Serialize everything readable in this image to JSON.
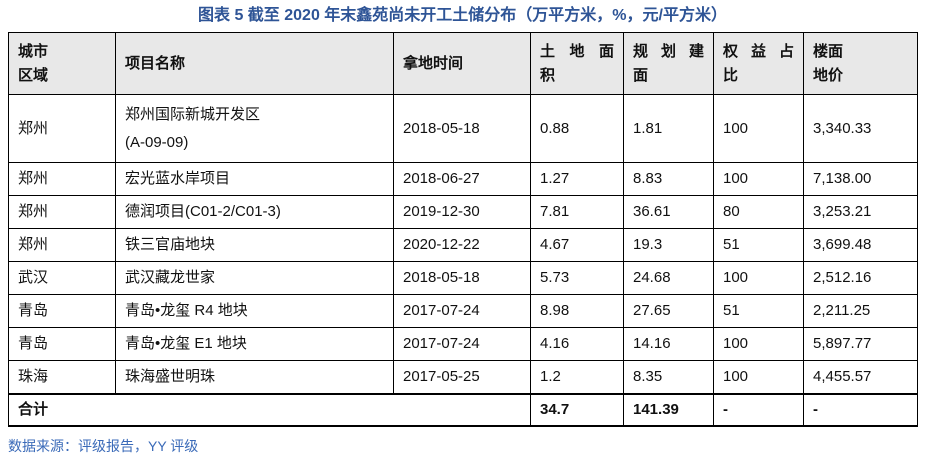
{
  "title": "图表 5 截至 2020 年末鑫苑尚未开工土储分布（万平方米，%，元/平方米）",
  "table": {
    "columns": [
      {
        "id": "city",
        "lines": [
          "城市",
          "区域"
        ],
        "justify": false
      },
      {
        "id": "project",
        "lines": [
          "项目名称"
        ],
        "justify": false
      },
      {
        "id": "date",
        "lines": [
          "拿地时间"
        ],
        "justify": false
      },
      {
        "id": "land-area",
        "lines": [
          "土地面",
          "积"
        ],
        "justify": true
      },
      {
        "id": "planned-gfa",
        "lines": [
          "规划建",
          "面"
        ],
        "justify": true
      },
      {
        "id": "equity",
        "lines": [
          "权益占",
          "比"
        ],
        "justify": true
      },
      {
        "id": "floor-price",
        "lines": [
          "楼面",
          "地价"
        ],
        "justify": false
      }
    ],
    "rows": [
      {
        "city": "郑州",
        "project": [
          "郑州国际新城开发区",
          "(A-09-09)"
        ],
        "date": "2018-05-18",
        "land_area": "0.88",
        "planned_gfa": "1.81",
        "equity_pct": "100",
        "floor_price": "3,340.33"
      },
      {
        "city": "郑州",
        "project": [
          "宏光蓝水岸项目"
        ],
        "date": "2018-06-27",
        "land_area": "1.27",
        "planned_gfa": "8.83",
        "equity_pct": "100",
        "floor_price": "7,138.00"
      },
      {
        "city": "郑州",
        "project": [
          "德润项目(C01-2/C01-3)"
        ],
        "date": "2019-12-30",
        "land_area": "7.81",
        "planned_gfa": "36.61",
        "equity_pct": "80",
        "floor_price": "3,253.21"
      },
      {
        "city": "郑州",
        "project": [
          "铁三官庙地块"
        ],
        "date": "2020-12-22",
        "land_area": "4.67",
        "planned_gfa": "19.3",
        "equity_pct": "51",
        "floor_price": "3,699.48"
      },
      {
        "city": "武汉",
        "project": [
          "武汉藏龙世家"
        ],
        "date": "2018-05-18",
        "land_area": "5.73",
        "planned_gfa": "24.68",
        "equity_pct": "100",
        "floor_price": "2,512.16"
      },
      {
        "city": "青岛",
        "project": [
          "青岛•龙玺 R4 地块"
        ],
        "date": "2017-07-24",
        "land_area": "8.98",
        "planned_gfa": "27.65",
        "equity_pct": "51",
        "floor_price": "2,211.25"
      },
      {
        "city": "青岛",
        "project": [
          "青岛•龙玺 E1 地块"
        ],
        "date": "2017-07-24",
        "land_area": "4.16",
        "planned_gfa": "14.16",
        "equity_pct": "100",
        "floor_price": "5,897.77"
      },
      {
        "city": "珠海",
        "project": [
          "珠海盛世明珠"
        ],
        "date": "2017-05-25",
        "land_area": "1.2",
        "planned_gfa": "8.35",
        "equity_pct": "100",
        "floor_price": "4,455.57"
      }
    ],
    "total": {
      "label": "合计",
      "land_area": "34.7",
      "planned_gfa": "141.39",
      "equity_pct": "-",
      "floor_price": "-"
    }
  },
  "footer": {
    "source": "数据来源：评级报告，YY 评级"
  },
  "colors": {
    "title_blue": "#2E5496",
    "footer_blue": "#3A6AB8",
    "header_bg": "#E8E8E8",
    "border": "#000000"
  }
}
